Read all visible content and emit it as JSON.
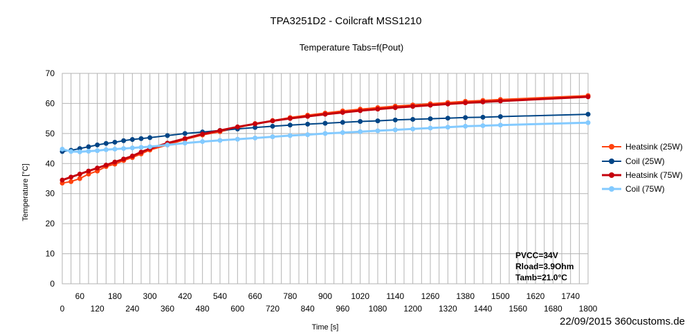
{
  "chart_data": {
    "type": "line",
    "title": "TPA3251D2 - Coilcraft MSS1210",
    "subtitle": "Temperature Tabs=f(Pout)",
    "xlabel": "Time [s]",
    "ylabel": "Temperature [°C]",
    "xlim": [
      0,
      1800
    ],
    "ylim": [
      0,
      70
    ],
    "x_ticks_lower": [
      "0",
      "120",
      "240",
      "360",
      "480",
      "600",
      "720",
      "840",
      "960",
      "1080",
      "1200",
      "1320",
      "1440",
      "1560",
      "1680",
      "1800"
    ],
    "x_ticks_upper": [
      "60",
      "180",
      "300",
      "420",
      "540",
      "660",
      "780",
      "900",
      "1020",
      "1140",
      "1260",
      "1380",
      "1500",
      "1620",
      "1740"
    ],
    "y_ticks": [
      "0",
      "10",
      "20",
      "30",
      "40",
      "50",
      "60",
      "70"
    ],
    "grid": true,
    "legend_position": "right",
    "annotations": [
      "PVCC=34V",
      "Rload=3.9Ohm",
      "Tamb=21.0°C"
    ],
    "series": [
      {
        "name": "Heatsink (25W)",
        "color": "#ff420e",
        "x": [
          0,
          30,
          60,
          90,
          120,
          150,
          180,
          210,
          240,
          270,
          300,
          360,
          420,
          480,
          540,
          600,
          660,
          720,
          780,
          840,
          900,
          960,
          1020,
          1080,
          1140,
          1200,
          1260,
          1320,
          1380,
          1440,
          1500,
          1800
        ],
        "y": [
          33.5,
          34.0,
          35.0,
          36.5,
          37.5,
          39.0,
          39.8,
          41.0,
          42.0,
          43.2,
          44.5,
          46.2,
          48.0,
          49.5,
          50.6,
          51.9,
          53.3,
          54.3,
          55.3,
          56.1,
          56.8,
          57.5,
          58.1,
          58.6,
          59.1,
          59.5,
          59.9,
          60.3,
          60.7,
          61.0,
          61.3,
          62.6
        ]
      },
      {
        "name": "Coil (25W)",
        "color": "#004586",
        "x": [
          0,
          30,
          60,
          90,
          120,
          150,
          180,
          210,
          240,
          270,
          300,
          360,
          420,
          480,
          540,
          600,
          660,
          720,
          780,
          840,
          900,
          960,
          1020,
          1080,
          1140,
          1200,
          1260,
          1320,
          1380,
          1440,
          1500,
          1800
        ],
        "y": [
          44.0,
          44.4,
          45.0,
          45.6,
          46.2,
          46.7,
          47.1,
          47.6,
          48.0,
          48.3,
          48.6,
          49.3,
          50.0,
          50.5,
          51.0,
          51.5,
          52.0,
          52.4,
          52.8,
          53.1,
          53.4,
          53.7,
          54.0,
          54.2,
          54.5,
          54.7,
          54.9,
          55.1,
          55.3,
          55.4,
          55.6,
          56.4
        ]
      },
      {
        "name": "Heatsink (75W)",
        "color": "#c5000b",
        "x": [
          0,
          30,
          60,
          90,
          120,
          150,
          180,
          210,
          240,
          270,
          300,
          360,
          420,
          480,
          540,
          600,
          660,
          720,
          780,
          840,
          900,
          960,
          1020,
          1080,
          1140,
          1200,
          1260,
          1320,
          1380,
          1440,
          1500,
          1800
        ],
        "y": [
          34.5,
          35.5,
          36.5,
          37.5,
          38.5,
          39.5,
          40.5,
          41.5,
          42.5,
          43.8,
          45.0,
          46.8,
          48.3,
          49.8,
          51.0,
          52.2,
          53.2,
          54.2,
          55.0,
          55.7,
          56.4,
          57.0,
          57.6,
          58.1,
          58.6,
          59.0,
          59.4,
          59.8,
          60.2,
          60.5,
          60.8,
          62.2
        ]
      },
      {
        "name": "Coil (75W)",
        "color": "#83caff",
        "x": [
          0,
          30,
          60,
          90,
          120,
          150,
          180,
          210,
          240,
          270,
          300,
          360,
          420,
          480,
          540,
          600,
          660,
          720,
          780,
          840,
          900,
          960,
          1020,
          1080,
          1140,
          1200,
          1260,
          1320,
          1380,
          1440,
          1500,
          1800
        ],
        "y": [
          44.8,
          44.0,
          43.9,
          44.1,
          44.3,
          44.6,
          44.8,
          45.0,
          45.2,
          45.4,
          45.6,
          46.2,
          46.8,
          47.3,
          47.7,
          48.1,
          48.5,
          48.9,
          49.3,
          49.6,
          50.0,
          50.3,
          50.6,
          50.9,
          51.2,
          51.5,
          51.8,
          52.1,
          52.4,
          52.6,
          52.8,
          53.6
        ]
      }
    ]
  },
  "footer": "22/09/2015 360customs.de"
}
